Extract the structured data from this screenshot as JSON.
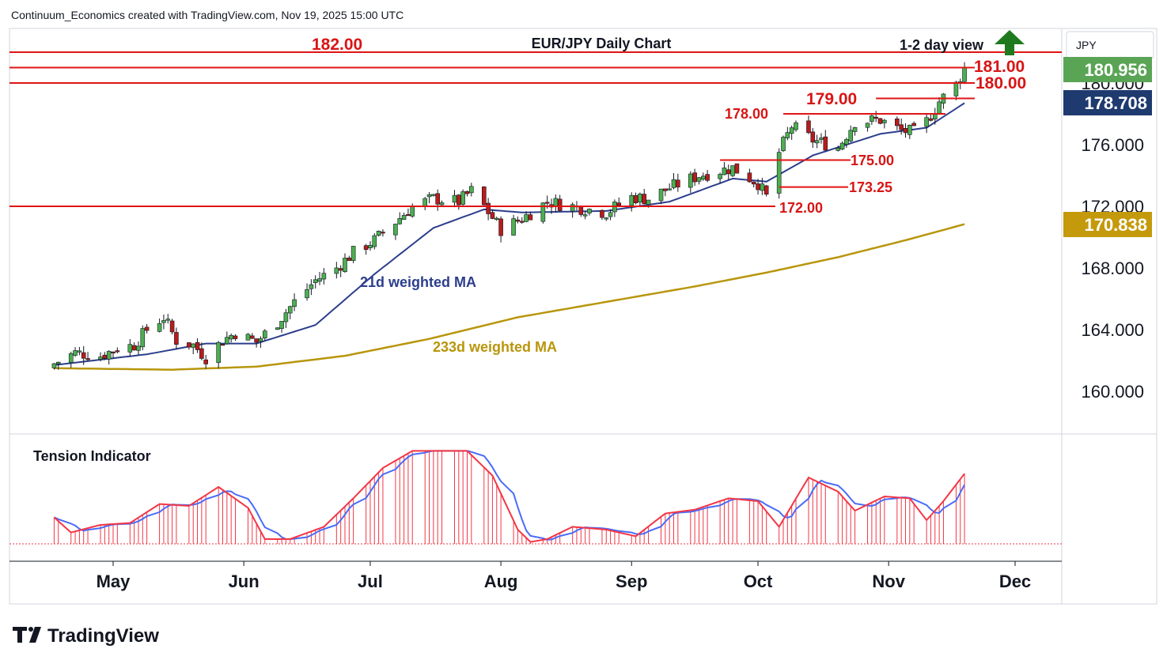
{
  "header": "Continuum_Economics created with TradingView.com, Nov 19, 2025 15:00 UTC",
  "brand": "TradingView",
  "currency": "JPY",
  "colors": {
    "up": "#4caf50",
    "down": "#b71c1c",
    "level": "#e01414",
    "ma21": "#2c3e8c",
    "ma233": "#b8960c",
    "tension_red": "#f23645",
    "tension_blue": "#4a6cf7",
    "badge_last": "#5aa455",
    "badge_ma21": "#1e3a6e",
    "badge_ma233": "#c49a0c"
  },
  "chart_data": {
    "type": "candlestick",
    "title": "EUR/JPY Daily Chart",
    "subtitle": "1-2 day view",
    "view_arrow": "up-arrow-icon",
    "yticks": [
      "160.000",
      "164.000",
      "168.000",
      "172.000",
      "176.000",
      "180.000"
    ],
    "xticks": [
      "May",
      "Jun",
      "Jul",
      "Aug",
      "Sep",
      "Oct",
      "Nov",
      "Dec"
    ],
    "levels": [
      "182.00",
      "181.00",
      "180.00",
      "179.00",
      "178.00",
      "175.00",
      "173.25",
      "172.00"
    ],
    "last_price": "180.956",
    "ma21_value": "178.708",
    "ma233_value": "170.838",
    "ma21_label": "21d weighted MA",
    "ma233_label": "233d weighted MA",
    "indicator_label": "Tension Indicator",
    "anchors": [
      [
        "2025-04-17",
        161.8
      ],
      [
        "2025-04-22",
        162.5
      ],
      [
        "2025-04-28",
        162.3
      ],
      [
        "2025-05-02",
        162.8
      ],
      [
        "2025-05-06",
        163.0
      ],
      [
        "2025-05-09",
        164.0
      ],
      [
        "2025-05-13",
        164.8
      ],
      [
        "2025-05-16",
        163.3
      ],
      [
        "2025-05-20",
        163.0
      ],
      [
        "2025-05-23",
        162.2
      ],
      [
        "2025-05-27",
        163.3
      ],
      [
        "2025-05-30",
        163.8
      ],
      [
        "2025-06-04",
        163.2
      ],
      [
        "2025-06-09",
        164.5
      ],
      [
        "2025-06-13",
        165.8
      ],
      [
        "2025-06-18",
        167.2
      ],
      [
        "2025-06-23",
        168.0
      ],
      [
        "2025-06-27",
        169.0
      ],
      [
        "2025-07-02",
        169.8
      ],
      [
        "2025-07-07",
        171.0
      ],
      [
        "2025-07-11",
        172.0
      ],
      [
        "2025-07-16",
        172.5
      ],
      [
        "2025-07-22",
        172.3
      ],
      [
        "2025-07-25",
        173.0
      ],
      [
        "2025-07-28",
        172.0
      ],
      [
        "2025-08-01",
        170.5
      ],
      [
        "2025-08-06",
        171.2
      ],
      [
        "2025-08-12",
        172.3
      ],
      [
        "2025-08-18",
        172.0
      ],
      [
        "2025-08-26",
        171.6
      ],
      [
        "2025-09-01",
        172.6
      ],
      [
        "2025-09-05",
        172.5
      ],
      [
        "2025-09-10",
        173.2
      ],
      [
        "2025-09-17",
        174.0
      ],
      [
        "2025-09-25",
        174.5
      ],
      [
        "2025-10-01",
        173.5
      ],
      [
        "2025-10-03",
        172.6
      ],
      [
        "2025-10-06",
        175.5
      ],
      [
        "2025-10-09",
        177.2
      ],
      [
        "2025-10-14",
        176.3
      ],
      [
        "2025-10-20",
        175.8
      ],
      [
        "2025-10-24",
        177.5
      ],
      [
        "2025-10-30",
        177.6
      ],
      [
        "2025-11-04",
        176.9
      ],
      [
        "2025-11-07",
        176.8
      ],
      [
        "2025-11-10",
        177.5
      ],
      [
        "2025-11-13",
        178.8
      ],
      [
        "2025-11-17",
        179.9
      ],
      [
        "2025-11-19",
        180.96
      ]
    ],
    "ma21": [
      [
        "2025-04-17",
        161.7
      ],
      [
        "2025-05-09",
        162.4
      ],
      [
        "2025-05-23",
        163.1
      ],
      [
        "2025-06-04",
        163.1
      ],
      [
        "2025-06-18",
        164.3
      ],
      [
        "2025-07-02",
        167.6
      ],
      [
        "2025-07-16",
        170.6
      ],
      [
        "2025-07-28",
        171.8
      ],
      [
        "2025-08-06",
        171.6
      ],
      [
        "2025-08-26",
        171.7
      ],
      [
        "2025-09-10",
        172.3
      ],
      [
        "2025-09-25",
        173.8
      ],
      [
        "2025-10-03",
        173.6
      ],
      [
        "2025-10-14",
        175.3
      ],
      [
        "2025-10-30",
        176.7
      ],
      [
        "2025-11-10",
        177.1
      ],
      [
        "2025-11-19",
        178.7
      ]
    ],
    "ma233": [
      [
        "2025-04-17",
        161.5
      ],
      [
        "2025-05-15",
        161.4
      ],
      [
        "2025-06-04",
        161.6
      ],
      [
        "2025-06-25",
        162.3
      ],
      [
        "2025-07-15",
        163.4
      ],
      [
        "2025-08-05",
        164.8
      ],
      [
        "2025-08-26",
        165.8
      ],
      [
        "2025-09-16",
        166.8
      ],
      [
        "2025-10-03",
        167.7
      ],
      [
        "2025-10-20",
        168.7
      ],
      [
        "2025-11-05",
        169.8
      ],
      [
        "2025-11-19",
        170.84
      ]
    ],
    "tension": [
      [
        "2025-04-17",
        0.28
      ],
      [
        "2025-04-21",
        0.12
      ],
      [
        "2025-04-28",
        0.2
      ],
      [
        "2025-05-05",
        0.22
      ],
      [
        "2025-05-12",
        0.42
      ],
      [
        "2025-05-19",
        0.4
      ],
      [
        "2025-05-26",
        0.6
      ],
      [
        "2025-06-02",
        0.38
      ],
      [
        "2025-06-06",
        0.05
      ],
      [
        "2025-06-12",
        0.05
      ],
      [
        "2025-06-20",
        0.18
      ],
      [
        "2025-06-27",
        0.48
      ],
      [
        "2025-07-04",
        0.8
      ],
      [
        "2025-07-11",
        0.98
      ],
      [
        "2025-07-18",
        0.98
      ],
      [
        "2025-07-24",
        0.98
      ],
      [
        "2025-07-30",
        0.72
      ],
      [
        "2025-08-05",
        0.15
      ],
      [
        "2025-08-08",
        0.02
      ],
      [
        "2025-08-12",
        0.05
      ],
      [
        "2025-08-18",
        0.18
      ],
      [
        "2025-08-26",
        0.15
      ],
      [
        "2025-09-02",
        0.08
      ],
      [
        "2025-09-09",
        0.32
      ],
      [
        "2025-09-16",
        0.36
      ],
      [
        "2025-09-24",
        0.48
      ],
      [
        "2025-10-01",
        0.45
      ],
      [
        "2025-10-06",
        0.18
      ],
      [
        "2025-10-13",
        0.7
      ],
      [
        "2025-10-20",
        0.55
      ],
      [
        "2025-10-24",
        0.35
      ],
      [
        "2025-10-31",
        0.5
      ],
      [
        "2025-11-06",
        0.48
      ],
      [
        "2025-11-10",
        0.25
      ],
      [
        "2025-11-14",
        0.45
      ],
      [
        "2025-11-19",
        0.74
      ]
    ]
  }
}
